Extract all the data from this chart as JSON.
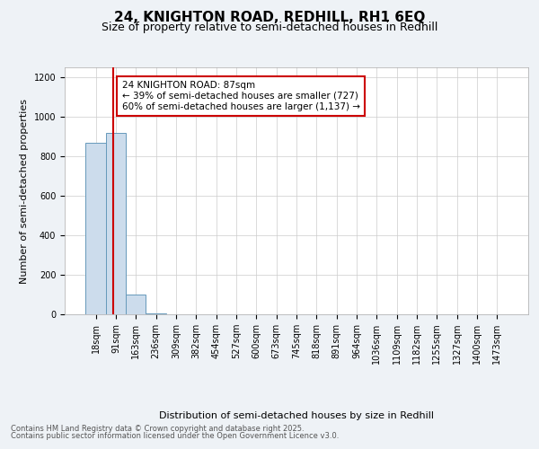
{
  "title": "24, KNIGHTON ROAD, REDHILL, RH1 6EQ",
  "subtitle": "Size of property relative to semi-detached houses in Redhill",
  "xlabel": "Distribution of semi-detached houses by size in Redhill",
  "ylabel": "Number of semi-detached properties",
  "annotation_line1": "24 KNIGHTON ROAD: 87sqm",
  "annotation_line2": "← 39% of semi-detached houses are smaller (727)",
  "annotation_line3": "60% of semi-detached houses are larger (1,137) →",
  "footer_line1": "Contains HM Land Registry data © Crown copyright and database right 2025.",
  "footer_line2": "Contains public sector information licensed under the Open Government Licence v3.0.",
  "bin_labels": [
    "18sqm",
    "91sqm",
    "163sqm",
    "236sqm",
    "309sqm",
    "382sqm",
    "454sqm",
    "527sqm",
    "600sqm",
    "673sqm",
    "745sqm",
    "818sqm",
    "891sqm",
    "964sqm",
    "1036sqm",
    "1109sqm",
    "1182sqm",
    "1255sqm",
    "1327sqm",
    "1400sqm",
    "1473sqm"
  ],
  "bin_values": [
    870,
    920,
    100,
    5,
    0,
    0,
    0,
    0,
    0,
    0,
    0,
    0,
    0,
    0,
    0,
    0,
    0,
    0,
    0,
    0,
    0
  ],
  "property_line_x": 0.88,
  "bar_color": "#ccdcec",
  "bar_edge_color": "#6699bb",
  "property_line_color": "#cc0000",
  "annotation_box_edge_color": "#cc0000",
  "ylim": [
    0,
    1250
  ],
  "yticks": [
    0,
    200,
    400,
    600,
    800,
    1000,
    1200
  ],
  "background_color": "#eef2f6",
  "plot_background": "#ffffff",
  "grid_color": "#cccccc",
  "title_fontsize": 11,
  "subtitle_fontsize": 9,
  "ylabel_fontsize": 8,
  "xlabel_fontsize": 8,
  "tick_fontsize": 7,
  "annotation_fontsize": 7.5,
  "footer_fontsize": 6
}
